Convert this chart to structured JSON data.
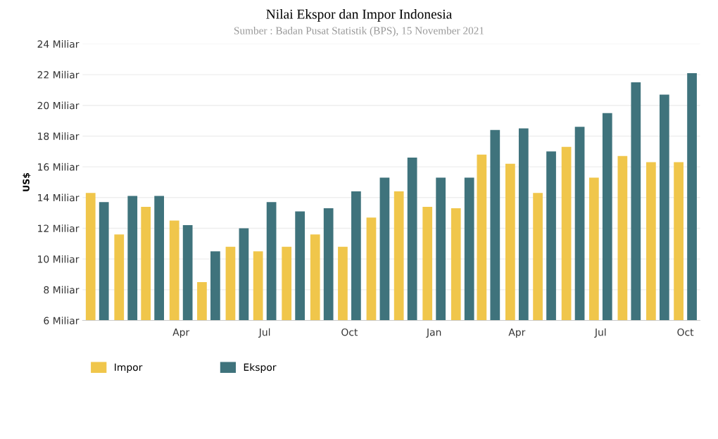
{
  "chart_data": {
    "type": "bar",
    "title": "Nilai Ekspor dan Impor Indonesia",
    "subtitle": "Sumber : Badan Pusat Statistik (BPS), 15 November 2021",
    "ylabel": "US$",
    "x": [
      "2020-01",
      "2020-02",
      "2020-03",
      "2020-04",
      "2020-05",
      "2020-06",
      "2020-07",
      "2020-08",
      "2020-09",
      "2020-10",
      "2020-11",
      "2020-12",
      "2021-01",
      "2021-02",
      "2021-03",
      "2021-04",
      "2021-05",
      "2021-06",
      "2021-07",
      "2021-08",
      "2021-09",
      "2021-10"
    ],
    "series": [
      {
        "name": "Impor",
        "color": "#f0c64b",
        "values": [
          14.3,
          11.6,
          13.4,
          12.5,
          8.5,
          10.8,
          10.5,
          10.8,
          11.6,
          10.8,
          12.7,
          14.4,
          13.4,
          13.3,
          16.8,
          16.2,
          14.3,
          17.3,
          15.3,
          16.7,
          16.3,
          16.3
        ]
      },
      {
        "name": "Ekspor",
        "color": "#3f737c",
        "values": [
          13.7,
          14.1,
          14.1,
          12.2,
          10.5,
          12.0,
          13.7,
          13.1,
          13.3,
          14.4,
          15.3,
          16.6,
          15.3,
          15.3,
          18.4,
          18.5,
          17.0,
          18.6,
          19.5,
          21.5,
          20.7,
          22.1
        ]
      }
    ],
    "xlim": [
      "2019-12-16",
      "2021-10-17"
    ],
    "xticks": [
      {
        "value": "2020-04",
        "label": "Apr"
      },
      {
        "value": "2020-07",
        "label": "Jul"
      },
      {
        "value": "2020-10",
        "label": "Oct"
      },
      {
        "value": "2021-01",
        "label": "Jan"
      },
      {
        "value": "2021-04",
        "label": "Apr"
      },
      {
        "value": "2021-07",
        "label": "Jul"
      },
      {
        "value": "2021-10",
        "label": "Oct"
      }
    ],
    "ylim": [
      6,
      24
    ],
    "yticks": [
      {
        "value": 6,
        "label": "6 Miliar"
      },
      {
        "value": 8,
        "label": "8 Miliar"
      },
      {
        "value": 10,
        "label": "10 Miliar"
      },
      {
        "value": 12,
        "label": "12 Miliar"
      },
      {
        "value": 14,
        "label": "14 Miliar"
      },
      {
        "value": 16,
        "label": "16 Miliar"
      },
      {
        "value": 18,
        "label": "18 Miliar"
      },
      {
        "value": 20,
        "label": "20 Miliar"
      },
      {
        "value": 22,
        "label": "22 Miliar"
      },
      {
        "value": 24,
        "label": "24 Miliar"
      }
    ],
    "grid": "y",
    "legend": "bottom left"
  }
}
